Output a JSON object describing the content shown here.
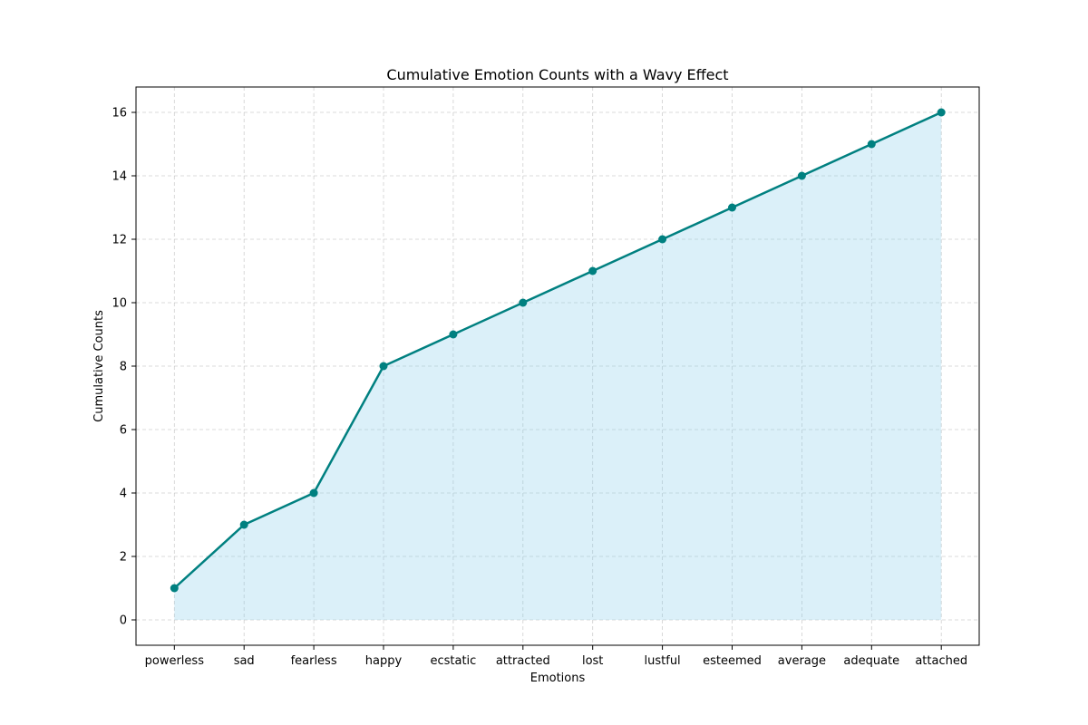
{
  "chart_data": {
    "type": "area",
    "title": "Cumulative Emotion Counts with a Wavy Effect",
    "xlabel": "Emotions",
    "ylabel": "Cumulative Counts",
    "categories": [
      "powerless",
      "sad",
      "fearless",
      "happy",
      "ecstatic",
      "attracted",
      "lost",
      "lustful",
      "esteemed",
      "average",
      "adequate",
      "attached"
    ],
    "values": [
      1,
      3,
      4,
      8,
      9,
      10,
      11,
      12,
      13,
      14,
      15,
      16
    ],
    "yticks": [
      "0",
      "2",
      "4",
      "6",
      "8",
      "10",
      "12",
      "14",
      "16"
    ],
    "ylim": [
      -0.8,
      16.8
    ],
    "grid": true,
    "colors": {
      "line": "#008080",
      "fill": "#87ceeb"
    }
  }
}
